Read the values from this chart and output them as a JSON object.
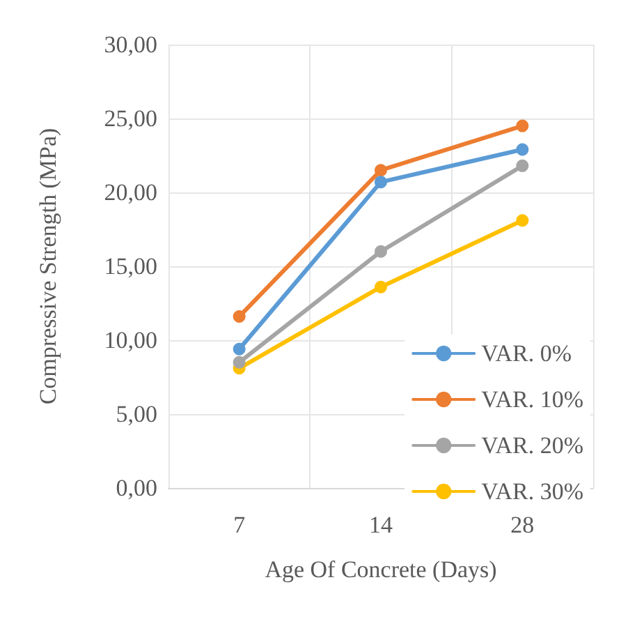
{
  "chart_data": {
    "type": "line",
    "xlabel": "Age Of Concrete (Days)",
    "ylabel": "Compressive Strength (MPa)",
    "categories": [
      "7",
      "14",
      "28"
    ],
    "series": [
      {
        "name": "VAR. 0%",
        "color": "#5b9bd5",
        "values": [
          9.4,
          20.7,
          22.9
        ]
      },
      {
        "name": "VAR. 10%",
        "color": "#ed7d31",
        "values": [
          11.6,
          21.5,
          24.5
        ]
      },
      {
        "name": "VAR. 20%",
        "color": "#a5a5a5",
        "values": [
          8.5,
          16.0,
          21.8
        ]
      },
      {
        "name": "VAR. 30%",
        "color": "#ffc000",
        "values": [
          8.1,
          13.6,
          18.1
        ]
      }
    ],
    "ylim": [
      0,
      30
    ],
    "yticks": [
      {
        "value": 0,
        "label": "0,00"
      },
      {
        "value": 5,
        "label": "5,00"
      },
      {
        "value": 10,
        "label": "10,00"
      },
      {
        "value": 15,
        "label": "15,00"
      },
      {
        "value": 20,
        "label": "20,00"
      },
      {
        "value": 25,
        "label": "25,00"
      },
      {
        "value": 30,
        "label": "30,00"
      }
    ],
    "grid": true,
    "legend": "bottom right",
    "marker": "circle",
    "line_style": "solid"
  }
}
